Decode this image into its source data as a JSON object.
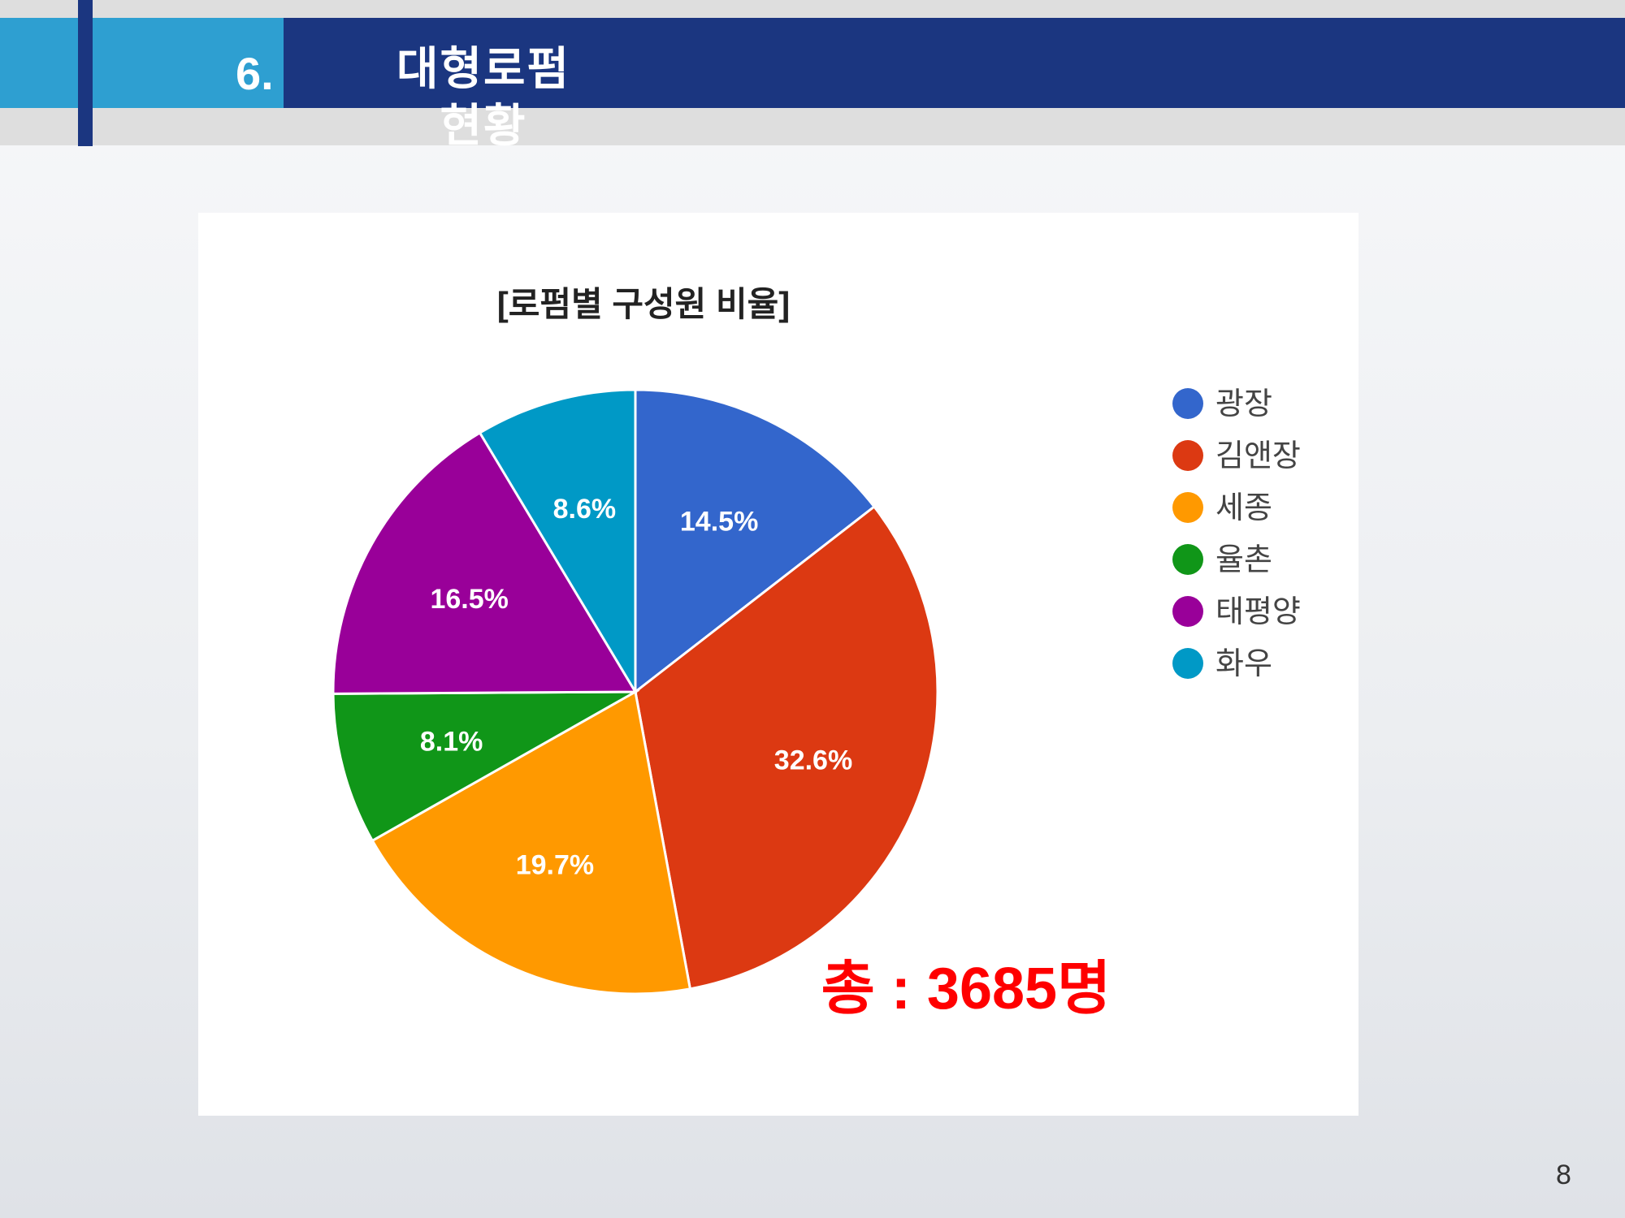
{
  "header": {
    "section_number": "6.",
    "section_title": "대형로펌 현황"
  },
  "page_number": "8",
  "total_label": "총 : 3685명",
  "colors": {
    "header_light": "#2e9fd1",
    "header_dark": "#1b3680",
    "total_text": "#ff0000"
  },
  "chart_data": {
    "type": "pie",
    "title": "[로펌별 구성원 비율]",
    "legend_position": "right",
    "categories": [
      "광장",
      "김앤장",
      "세종",
      "율촌",
      "태평양",
      "화우"
    ],
    "values": [
      14.5,
      32.6,
      19.7,
      8.1,
      16.5,
      8.6
    ],
    "labels": [
      "14.5%",
      "32.6%",
      "19.7%",
      "8.1%",
      "16.5%",
      "8.6%"
    ],
    "colors": [
      "#3366cc",
      "#dc3912",
      "#ff9900",
      "#109618",
      "#990099",
      "#0099c6"
    ]
  }
}
